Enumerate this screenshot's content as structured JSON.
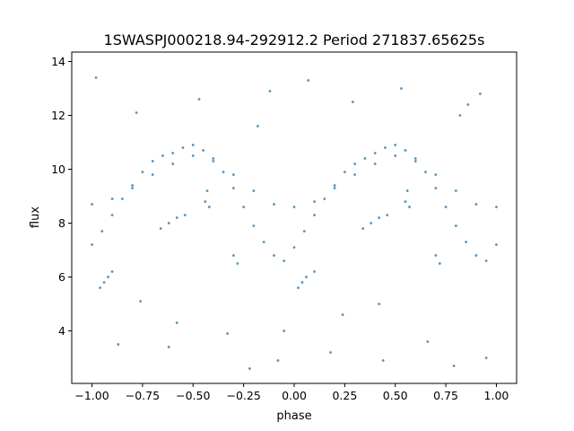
{
  "chart_data": {
    "type": "scatter",
    "title": "1SWASPJ000218.94-292912.2 Period 271837.65625s",
    "xlabel": "phase",
    "ylabel": "flux",
    "xlim": [
      -1.1,
      1.1
    ],
    "ylim": [
      2.05,
      14.35
    ],
    "xticks": [
      -1.0,
      -0.75,
      -0.5,
      -0.25,
      0.0,
      0.25,
      0.5,
      0.75,
      1.0
    ],
    "xtick_labels": [
      "−1.00",
      "−0.75",
      "−0.50",
      "−0.25",
      "0.00",
      "0.25",
      "0.50",
      "0.75",
      "1.00"
    ],
    "yticks": [
      4,
      6,
      8,
      10,
      12,
      14
    ],
    "ytick_labels": [
      "4",
      "6",
      "8",
      "10",
      "12",
      "14"
    ],
    "grid": false,
    "point_color": "#1f77b4",
    "series": [
      {
        "x": [
          -1.0,
          -0.95,
          -0.9,
          -0.85,
          -0.8,
          -0.75,
          -0.7,
          -0.65,
          -0.6,
          -0.55,
          -0.5,
          -0.45,
          -0.4,
          -0.35,
          -0.3,
          -0.25,
          -0.2,
          -0.15,
          -0.1,
          -0.05,
          0.0,
          0.05,
          0.1,
          0.15,
          0.2,
          0.25,
          0.3,
          0.35,
          0.4,
          0.45,
          0.5,
          0.55,
          0.6,
          0.65,
          0.7,
          0.75,
          0.8,
          0.85,
          0.9,
          0.95,
          1.0
        ],
        "y": [
          7.2,
          7.7,
          8.3,
          8.9,
          9.4,
          9.9,
          10.3,
          10.5,
          10.6,
          10.8,
          10.9,
          10.7,
          10.4,
          9.9,
          9.3,
          8.6,
          7.9,
          7.3,
          6.8,
          6.6,
          7.1,
          7.7,
          8.3,
          8.9,
          9.4,
          9.9,
          10.2,
          10.4,
          10.6,
          10.8,
          10.9,
          10.7,
          10.4,
          9.9,
          9.3,
          8.6,
          7.9,
          7.3,
          6.8,
          6.6,
          7.2
        ]
      },
      {
        "x": [
          -1.0,
          -0.9,
          -0.8,
          -0.7,
          -0.6,
          -0.5,
          -0.4,
          -0.3,
          -0.2,
          -0.1,
          0.0,
          0.1,
          0.2,
          0.3,
          0.4,
          0.5,
          0.6,
          0.7,
          0.8,
          0.9,
          1.0
        ],
        "y": [
          8.7,
          8.9,
          9.3,
          9.8,
          10.2,
          10.5,
          10.3,
          9.8,
          9.2,
          8.7,
          8.6,
          8.8,
          9.3,
          9.8,
          10.2,
          10.5,
          10.3,
          9.8,
          9.2,
          8.7,
          8.6
        ]
      },
      {
        "x": [
          -0.96,
          -0.94,
          -0.92,
          -0.9,
          -0.66,
          -0.62,
          -0.58,
          -0.54,
          -0.44,
          -0.43,
          -0.42,
          -0.3,
          -0.28,
          0.02,
          0.04,
          0.06,
          0.1,
          0.34,
          0.38,
          0.42,
          0.46,
          0.55,
          0.56,
          0.57,
          0.7,
          0.72
        ],
        "y": [
          5.6,
          5.8,
          6.0,
          6.2,
          7.8,
          8.0,
          8.2,
          8.3,
          8.8,
          9.2,
          8.6,
          6.8,
          6.5,
          5.6,
          5.8,
          6.0,
          6.2,
          7.8,
          8.0,
          8.2,
          8.3,
          8.8,
          9.2,
          8.6,
          6.8,
          6.5
        ]
      },
      {
        "x": [
          -0.98,
          -0.87,
          -0.78,
          -0.62,
          -0.47,
          -0.33,
          -0.22,
          -0.12,
          -0.05,
          0.07,
          0.18,
          0.29,
          0.44,
          0.53,
          0.66,
          0.79,
          0.86,
          0.95,
          -0.76,
          0.24,
          -0.18,
          0.82,
          -0.58,
          0.42,
          -0.08,
          0.92
        ],
        "y": [
          13.4,
          3.5,
          12.1,
          3.4,
          12.6,
          3.9,
          2.6,
          12.9,
          4.0,
          13.3,
          3.2,
          12.5,
          2.9,
          13.0,
          3.6,
          2.7,
          12.4,
          3.0,
          5.1,
          4.6,
          11.6,
          12.0,
          4.3,
          5.0,
          2.9,
          12.8
        ]
      }
    ]
  }
}
